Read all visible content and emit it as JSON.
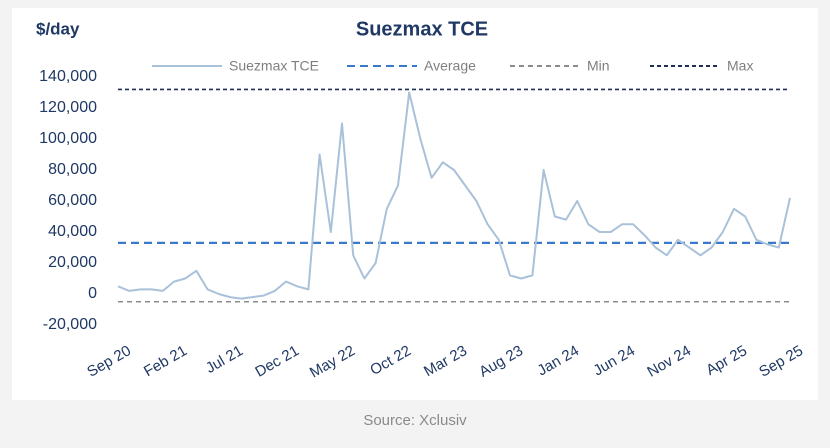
{
  "chart_data": {
    "type": "line",
    "title": "Suezmax TCE",
    "y_label": "$/day",
    "source": "Source: Xclusiv",
    "categories": [
      "Sep 20",
      null,
      null,
      null,
      null,
      "Feb 21",
      null,
      null,
      null,
      null,
      "Jul 21",
      null,
      null,
      null,
      null,
      "Dec 21",
      null,
      null,
      null,
      null,
      "May 22",
      null,
      null,
      null,
      null,
      "Oct 22",
      null,
      null,
      null,
      null,
      "Mar 23",
      null,
      null,
      null,
      null,
      "Aug 23",
      null,
      null,
      null,
      null,
      "Jan 24",
      null,
      null,
      null,
      null,
      "Jun 24",
      null,
      null,
      null,
      null,
      "Nov 24",
      null,
      null,
      null,
      null,
      "Apr 25",
      null,
      null,
      null,
      null,
      "Sep 25"
    ],
    "series": [
      {
        "name": "Suezmax TCE",
        "color": "#a9c1d9",
        "values": [
          5000,
          2000,
          3000,
          3000,
          2000,
          8000,
          10000,
          15000,
          3000,
          0,
          -2000,
          -3000,
          -2000,
          -1000,
          2000,
          8000,
          5000,
          3000,
          90000,
          40000,
          110000,
          25000,
          10000,
          20000,
          55000,
          70000,
          130000,
          100000,
          75000,
          85000,
          80000,
          70000,
          60000,
          45000,
          35000,
          12000,
          10000,
          12000,
          80000,
          50000,
          48000,
          60000,
          45000,
          40000,
          40000,
          45000,
          45000,
          38000,
          30000,
          25000,
          35000,
          30000,
          25000,
          30000,
          40000,
          55000,
          50000,
          35000,
          32000,
          30000,
          62000
        ]
      }
    ],
    "reference_lines": [
      {
        "name": "Average",
        "value": 33000,
        "color": "#3a78c9"
      },
      {
        "name": "Min",
        "value": -5000,
        "color": "#8c8c8c"
      },
      {
        "name": "Max",
        "value": 132000,
        "color": "#1f2f5a"
      }
    ],
    "ylim": [
      -20000,
      140000
    ],
    "yticks": [
      {
        "value": -20000,
        "label": "-20,000"
      },
      0,
      {
        "value": 20000,
        "label": "20,000"
      },
      {
        "value": 40000,
        "label": "40,000"
      },
      {
        "value": 60000,
        "label": "60,000"
      },
      {
        "value": 80000,
        "label": "80,000"
      },
      {
        "value": 100000,
        "label": "100,000"
      },
      {
        "value": 120000,
        "label": "120,000"
      },
      {
        "value": 140000,
        "label": "140,000"
      }
    ],
    "grid": false,
    "legend": "top"
  }
}
